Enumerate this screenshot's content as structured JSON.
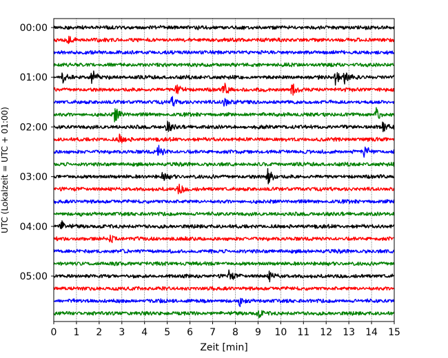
{
  "chart_data": {
    "type": "line",
    "subtype": "helicorder",
    "xlabel": "Zeit  [min]",
    "ylabel": "UTC (Lokalzeit = UTC + 01:00)",
    "xlim": [
      0,
      15
    ],
    "x_ticks": [
      0,
      1,
      2,
      3,
      4,
      5,
      6,
      7,
      8,
      9,
      10,
      11,
      12,
      13,
      14,
      15
    ],
    "x_gridlines": "dotted, every minute",
    "y_ticks": [
      "00:00",
      "01:00",
      "02:00",
      "03:00",
      "04:00",
      "05:00"
    ],
    "trace_interval_minutes": 15,
    "trace_count": 24,
    "trace_colors": [
      "#000000",
      "#ff0000",
      "#0000ff",
      "#008000"
    ],
    "events": [
      {
        "trace": 1,
        "t": 0.6,
        "amp": 0.6
      },
      {
        "trace": 4,
        "t": 0.4,
        "amp": 0.6
      },
      {
        "trace": 4,
        "t": 1.7,
        "amp": 1.0
      },
      {
        "trace": 4,
        "t": 12.4,
        "amp": 1.0
      },
      {
        "trace": 4,
        "t": 12.8,
        "amp": 0.7
      },
      {
        "trace": 5,
        "t": 5.4,
        "amp": 1.0
      },
      {
        "trace": 5,
        "t": 7.5,
        "amp": 0.9
      },
      {
        "trace": 5,
        "t": 10.5,
        "amp": 0.8
      },
      {
        "trace": 6,
        "t": 5.2,
        "amp": 0.6
      },
      {
        "trace": 6,
        "t": 7.5,
        "amp": 0.6
      },
      {
        "trace": 7,
        "t": 2.7,
        "amp": 1.0
      },
      {
        "trace": 7,
        "t": 14.2,
        "amp": 0.9
      },
      {
        "trace": 8,
        "t": 5.0,
        "amp": 0.7
      },
      {
        "trace": 8,
        "t": 14.5,
        "amp": 0.6
      },
      {
        "trace": 9,
        "t": 2.9,
        "amp": 0.6
      },
      {
        "trace": 10,
        "t": 4.6,
        "amp": 0.8
      },
      {
        "trace": 10,
        "t": 13.7,
        "amp": 0.8
      },
      {
        "trace": 12,
        "t": 9.4,
        "amp": 1.2
      },
      {
        "trace": 12,
        "t": 4.8,
        "amp": 0.5
      },
      {
        "trace": 13,
        "t": 5.5,
        "amp": 0.6
      },
      {
        "trace": 16,
        "t": 0.3,
        "amp": 0.8
      },
      {
        "trace": 17,
        "t": 2.5,
        "amp": 0.5
      },
      {
        "trace": 20,
        "t": 7.7,
        "amp": 0.7
      },
      {
        "trace": 20,
        "t": 9.5,
        "amp": 0.6
      },
      {
        "trace": 22,
        "t": 8.2,
        "amp": 0.5
      },
      {
        "trace": 23,
        "t": 9.0,
        "amp": 0.5
      }
    ]
  }
}
